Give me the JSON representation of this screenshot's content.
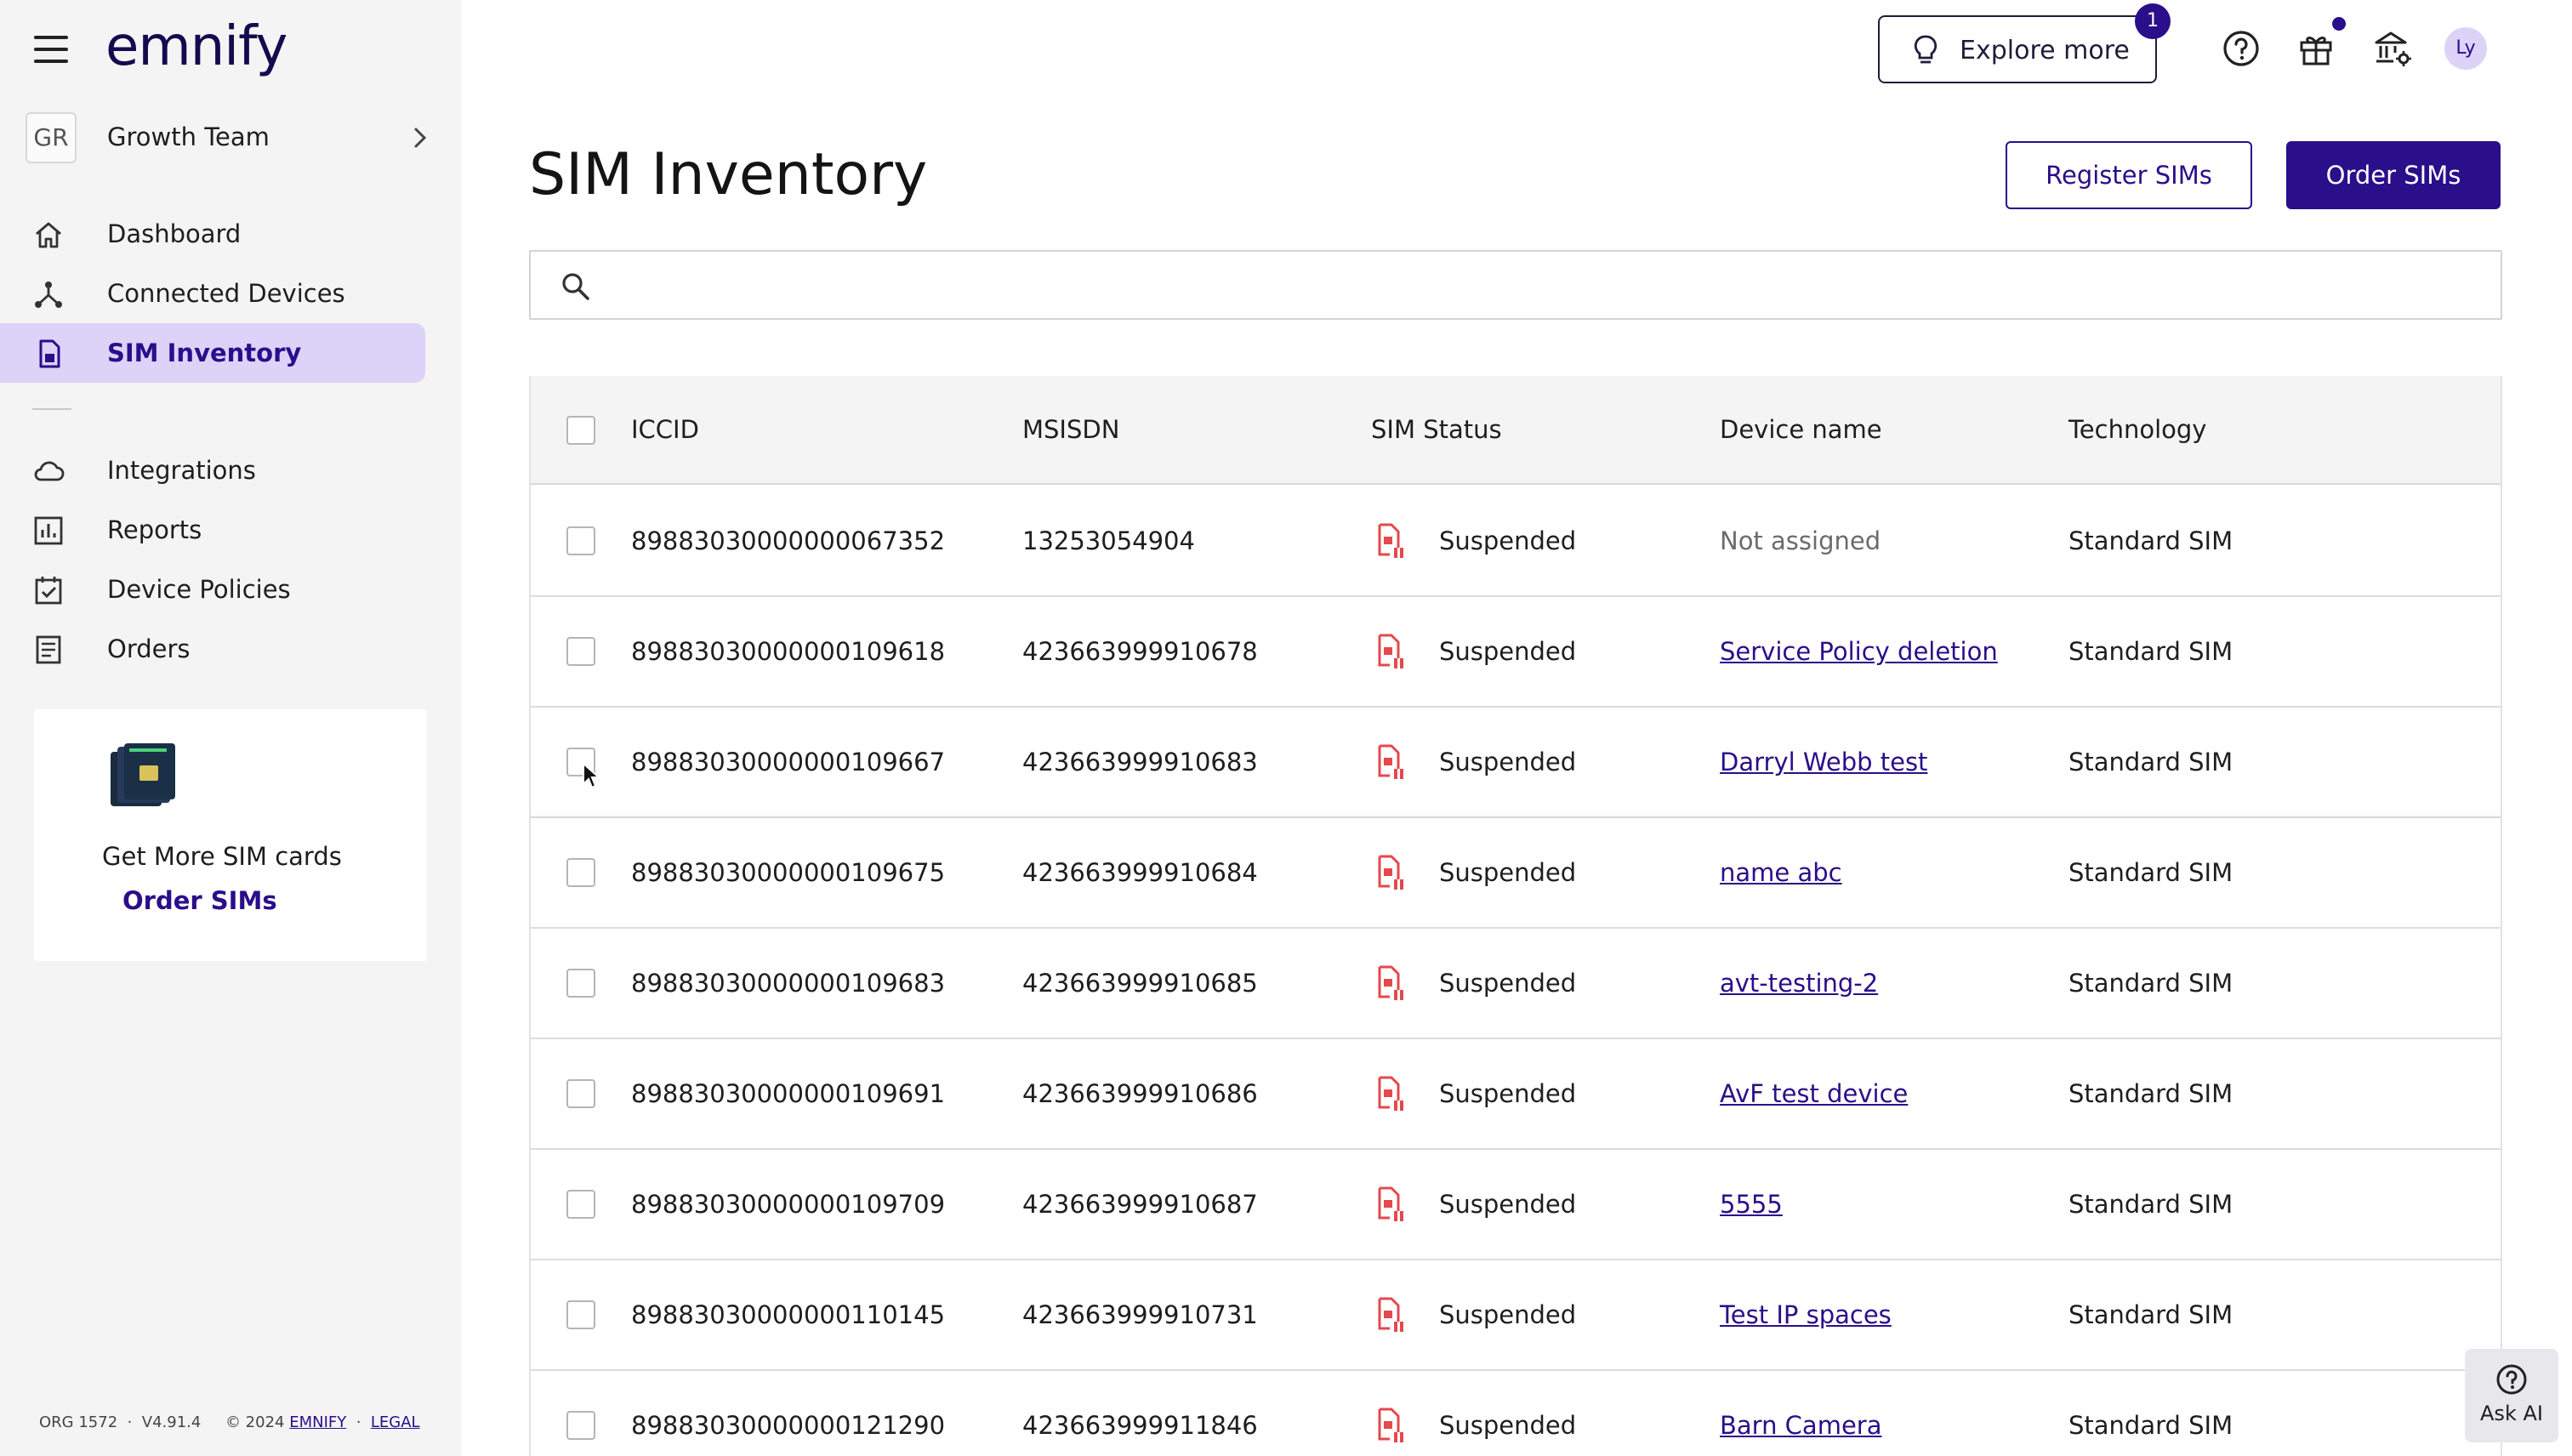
{
  "app": {
    "logo_text": "emnify",
    "org_badge": "GR",
    "org_name": "Growth Team"
  },
  "sidebar": {
    "items": [
      {
        "label": "Dashboard",
        "icon": "home-icon",
        "active": false
      },
      {
        "label": "Connected Devices",
        "icon": "network-icon",
        "active": false
      },
      {
        "label": "SIM Inventory",
        "icon": "sim-card-icon",
        "active": true
      },
      {
        "label": "Integrations",
        "icon": "cloud-icon",
        "active": false
      },
      {
        "label": "Reports",
        "icon": "bar-chart-icon",
        "active": false
      },
      {
        "label": "Device Policies",
        "icon": "checklist-icon",
        "active": false
      },
      {
        "label": "Orders",
        "icon": "receipt-icon",
        "active": false
      }
    ],
    "promo": {
      "text": "Get More SIM cards",
      "link": "Order SIMs",
      "image": "sim-cards-image"
    },
    "footer": {
      "org": "ORG 1572",
      "version": "V4.91.4",
      "copyright": "© 2024",
      "company_link": "EMNIFY",
      "legal_link": "LEGAL"
    }
  },
  "topbar": {
    "explore_label": "Explore more",
    "explore_badge": "1",
    "icons": [
      "help-icon",
      "gift-icon",
      "bank-settings-icon"
    ],
    "avatar": "Ly"
  },
  "header": {
    "title": "SIM Inventory",
    "register_label": "Register SIMs",
    "order_label": "Order SIMs"
  },
  "search": {
    "placeholder": "",
    "value": ""
  },
  "table": {
    "columns": [
      "ICCID",
      "MSISDN",
      "SIM Status",
      "Device name",
      "Technology"
    ],
    "rows": [
      {
        "iccid": "89883030000000067352",
        "msisdn": "13253054904",
        "status": "Suspended",
        "device": "Not assigned",
        "device_is_link": false,
        "technology": "Standard SIM"
      },
      {
        "iccid": "89883030000000109618",
        "msisdn": "423663999910678",
        "status": "Suspended",
        "device": "Service Policy deletion",
        "device_is_link": true,
        "technology": "Standard SIM"
      },
      {
        "iccid": "89883030000000109667",
        "msisdn": "423663999910683",
        "status": "Suspended",
        "device": "Darryl Webb test",
        "device_is_link": true,
        "technology": "Standard SIM"
      },
      {
        "iccid": "89883030000000109675",
        "msisdn": "423663999910684",
        "status": "Suspended",
        "device": "name abc",
        "device_is_link": true,
        "technology": "Standard SIM"
      },
      {
        "iccid": "89883030000000109683",
        "msisdn": "423663999910685",
        "status": "Suspended",
        "device": "avt-testing-2",
        "device_is_link": true,
        "technology": "Standard SIM"
      },
      {
        "iccid": "89883030000000109691",
        "msisdn": "423663999910686",
        "status": "Suspended",
        "device": "AvF test device",
        "device_is_link": true,
        "technology": "Standard SIM"
      },
      {
        "iccid": "89883030000000109709",
        "msisdn": "423663999910687",
        "status": "Suspended",
        "device": "5555",
        "device_is_link": true,
        "technology": "Standard SIM"
      },
      {
        "iccid": "89883030000000110145",
        "msisdn": "423663999910731",
        "status": "Suspended",
        "device": "Test IP spaces",
        "device_is_link": true,
        "technology": "Standard SIM"
      },
      {
        "iccid": "89883030000000121290",
        "msisdn": "423663999911846",
        "status": "Suspended",
        "device": "Barn Camera",
        "device_is_link": true,
        "technology": "Standard SIM"
      }
    ]
  },
  "ask_ai": {
    "label": "Ask AI"
  },
  "colors": {
    "brand": "#2a0e8a",
    "active_nav_bg": "#ddd2f7",
    "suspended": "#e5484d"
  }
}
